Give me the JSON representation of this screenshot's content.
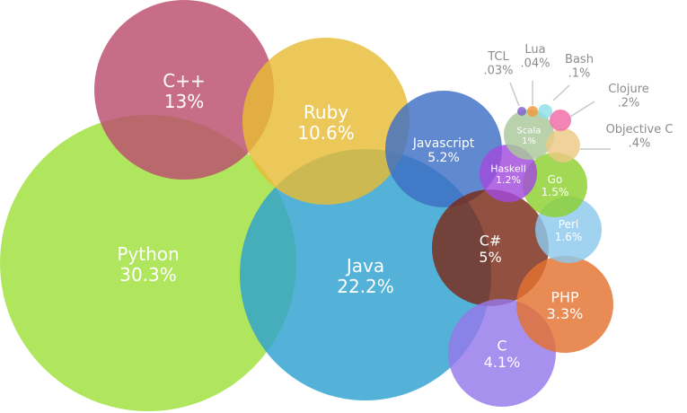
{
  "chart_data": {
    "type": "bubble",
    "title": "",
    "bubbles": [
      {
        "name": "Python",
        "value": 30.3,
        "display": "30.3%",
        "color": "#9fe03a"
      },
      {
        "name": "Java",
        "value": 22.2,
        "display": "22.2%",
        "color": "#2ea1cf"
      },
      {
        "name": "C++",
        "value": 13.0,
        "display": "13%",
        "color": "#bb4d6e"
      },
      {
        "name": "Ruby",
        "value": 10.6,
        "display": "10.6%",
        "color": "#e8bb35"
      },
      {
        "name": "Javascript",
        "value": 5.2,
        "display": "5.2%",
        "color": "#3d6fc4"
      },
      {
        "name": "C#",
        "value": 5.0,
        "display": "5%",
        "color": "#7a2a17"
      },
      {
        "name": "C",
        "value": 4.1,
        "display": "4.1%",
        "color": "#9578ea"
      },
      {
        "name": "PHP",
        "value": 3.3,
        "display": "3.3%",
        "color": "#e3712f"
      },
      {
        "name": "Perl",
        "value": 1.6,
        "display": "1.6%",
        "color": "#8cc9ee"
      },
      {
        "name": "Go",
        "value": 1.5,
        "display": "1.5%",
        "color": "#8ccf2e"
      },
      {
        "name": "Haskell",
        "value": 1.2,
        "display": "1.2%",
        "color": "#a24bdd"
      },
      {
        "name": "Scala",
        "value": 1.0,
        "display": "1%",
        "color": "#a9c89a"
      },
      {
        "name": "Objective C",
        "value": 0.4,
        "display": ".4%",
        "color": "#ecc984"
      },
      {
        "name": "Clojure",
        "value": 0.2,
        "display": ".2%",
        "color": "#f06aa6"
      },
      {
        "name": "Bash",
        "value": 0.1,
        "display": ".1%",
        "color": "#8ee0e8"
      },
      {
        "name": "Lua",
        "value": 0.04,
        "display": ".04%",
        "color": "#f09a3c"
      },
      {
        "name": "TCL",
        "value": 0.03,
        "display": ".03%",
        "color": "#7d5fd0"
      }
    ]
  }
}
